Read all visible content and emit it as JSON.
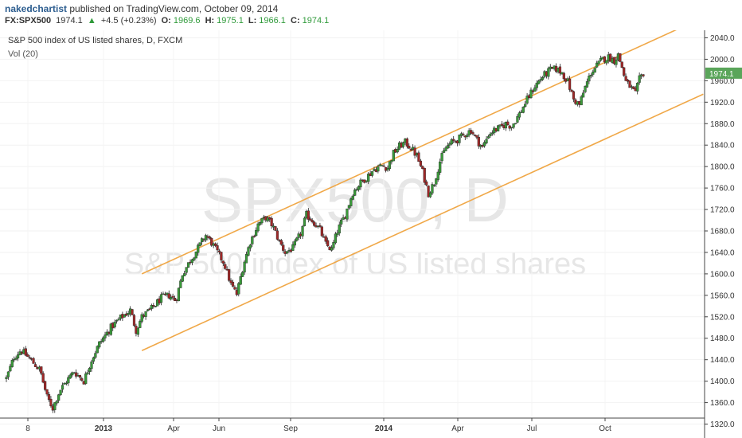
{
  "header": {
    "author": "nakedchartist",
    "published_text": "published on TradingView.com, October 09, 2014",
    "symbol": "FX:SPX500",
    "last": "1974.1",
    "change": "+4.5 (+0.23%)",
    "open_label": "O:",
    "open": "1969.6",
    "high_label": "H:",
    "high": "1975.1",
    "low_label": "L:",
    "low": "1966.1",
    "close_label": "C:",
    "close": "1974.1"
  },
  "watermark": {
    "line1": "SPX500, D",
    "line2": "S&P 500 index of US listed shares"
  },
  "chart_data": {
    "type": "candlestick",
    "title": "S&P 500 index of US listed shares, D, FXCM",
    "indicator": "Vol (20)",
    "ylim": [
      1300,
      2060
    ],
    "y_ticks": [
      1320,
      1360,
      1400,
      1440,
      1480,
      1520,
      1560,
      1600,
      1640,
      1680,
      1720,
      1760,
      1800,
      1840,
      1880,
      1920,
      1960,
      2000,
      2040
    ],
    "x_ticks": [
      {
        "label": "8",
        "bold": false
      },
      {
        "label": "2013",
        "bold": true
      },
      {
        "label": "Apr",
        "bold": false
      },
      {
        "label": "Jun",
        "bold": false
      },
      {
        "label": "Sep",
        "bold": false
      },
      {
        "label": "2014",
        "bold": true
      },
      {
        "label": "Apr",
        "bold": false
      },
      {
        "label": "Jul",
        "bold": false
      },
      {
        "label": "Oct",
        "bold": false
      }
    ],
    "last_price": 1974.1,
    "last_price_label": "1974.1",
    "colors": {
      "up": "#3a9a3a",
      "down": "#a02828",
      "channel": "#f0a848",
      "last_badge": "#5aa55a"
    },
    "trend_path": [
      [
        0,
        1405
      ],
      [
        8,
        1445
      ],
      [
        15,
        1458
      ],
      [
        25,
        1440
      ],
      [
        35,
        1420
      ],
      [
        42,
        1370
      ],
      [
        48,
        1350
      ],
      [
        55,
        1382
      ],
      [
        62,
        1400
      ],
      [
        70,
        1418
      ],
      [
        80,
        1400
      ],
      [
        88,
        1440
      ],
      [
        96,
        1470
      ],
      [
        108,
        1500
      ],
      [
        118,
        1518
      ],
      [
        128,
        1532
      ],
      [
        134,
        1495
      ],
      [
        140,
        1520
      ],
      [
        150,
        1535
      ],
      [
        160,
        1555
      ],
      [
        168,
        1560
      ],
      [
        175,
        1550
      ],
      [
        182,
        1600
      ],
      [
        190,
        1625
      ],
      [
        198,
        1648
      ],
      [
        206,
        1672
      ],
      [
        212,
        1658
      ],
      [
        218,
        1640
      ],
      [
        225,
        1620
      ],
      [
        232,
        1580
      ],
      [
        238,
        1562
      ],
      [
        245,
        1618
      ],
      [
        252,
        1660
      ],
      [
        260,
        1692
      ],
      [
        268,
        1705
      ],
      [
        275,
        1690
      ],
      [
        282,
        1660
      ],
      [
        288,
        1640
      ],
      [
        296,
        1648
      ],
      [
        304,
        1675
      ],
      [
        310,
        1710
      ],
      [
        317,
        1698
      ],
      [
        324,
        1682
      ],
      [
        330,
        1655
      ],
      [
        336,
        1645
      ],
      [
        342,
        1680
      ],
      [
        350,
        1710
      ],
      [
        358,
        1752
      ],
      [
        365,
        1768
      ],
      [
        372,
        1780
      ],
      [
        380,
        1795
      ],
      [
        388,
        1802
      ],
      [
        394,
        1798
      ],
      [
        400,
        1825
      ],
      [
        406,
        1838
      ],
      [
        412,
        1845
      ],
      [
        418,
        1835
      ],
      [
        424,
        1820
      ],
      [
        430,
        1790
      ],
      [
        436,
        1750
      ],
      [
        442,
        1770
      ],
      [
        448,
        1810
      ],
      [
        454,
        1835
      ],
      [
        460,
        1845
      ],
      [
        466,
        1850
      ],
      [
        472,
        1858
      ],
      [
        480,
        1868
      ],
      [
        486,
        1850
      ],
      [
        492,
        1835
      ],
      [
        498,
        1860
      ],
      [
        504,
        1868
      ],
      [
        510,
        1872
      ],
      [
        516,
        1880
      ],
      [
        522,
        1875
      ],
      [
        530,
        1898
      ],
      [
        538,
        1925
      ],
      [
        546,
        1950
      ],
      [
        554,
        1968
      ],
      [
        562,
        1980
      ],
      [
        568,
        1982
      ],
      [
        574,
        1975
      ],
      [
        580,
        1958
      ],
      [
        586,
        1925
      ],
      [
        592,
        1915
      ],
      [
        598,
        1948
      ],
      [
        604,
        1975
      ],
      [
        610,
        1988
      ],
      [
        616,
        2000
      ],
      [
        622,
        2004
      ],
      [
        628,
        1998
      ],
      [
        632,
        2008
      ],
      [
        636,
        1985
      ],
      [
        640,
        1958
      ],
      [
        645,
        1948
      ],
      [
        650,
        1935
      ],
      [
        654,
        1963
      ],
      [
        658,
        1974
      ]
    ],
    "channel_upper": [
      [
        140,
        1600
      ],
      [
        720,
        2078
      ]
    ],
    "channel_lower": [
      [
        140,
        1457
      ],
      [
        720,
        1935
      ]
    ]
  }
}
